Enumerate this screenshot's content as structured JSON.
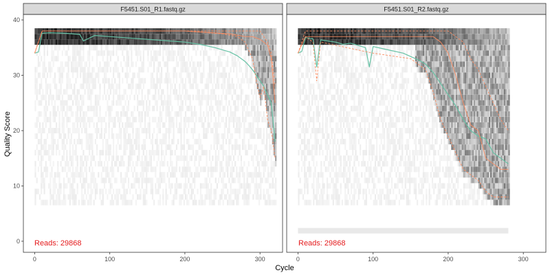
{
  "figure": {
    "xlabel": "Cycle",
    "ylabel": "Quality Score",
    "x_ticks": [
      0,
      100,
      200,
      300
    ],
    "y_ticks": [
      0,
      10,
      20,
      30,
      40
    ],
    "xlim": [
      -15,
      330
    ],
    "ylim": [
      -2,
      41
    ],
    "colors": {
      "mean_line": "#66c2a5",
      "quantile_lines": "#fc8d62",
      "reads_text": "#e41a1c",
      "strip_fill": "#d9d9d9",
      "panel_border": "#333333",
      "heatmap_base": "#ececec"
    }
  },
  "chart_data": [
    {
      "type": "line",
      "panel_title": "F5451.S01_R1.fastq.gz",
      "reads_label": "Reads:  29868",
      "cycles": 320,
      "series": [
        {
          "role": "mean",
          "x": [
            0,
            5,
            10,
            20,
            40,
            60,
            65,
            80,
            100,
            120,
            140,
            160,
            180,
            200,
            220,
            240,
            260,
            270,
            280,
            285,
            290,
            295,
            300,
            305,
            310,
            315,
            320
          ],
          "y": [
            34,
            34.2,
            37.6,
            37.7,
            37.6,
            37.4,
            36.2,
            37.2,
            37.0,
            36.8,
            36.6,
            36.4,
            36.2,
            36.0,
            35.6,
            35.0,
            34.2,
            33.5,
            32.5,
            31.8,
            31.0,
            30.0,
            29.0,
            28.0,
            26.5,
            25.0,
            18.0
          ]
        },
        {
          "role": "median",
          "x": [
            0,
            10,
            100,
            200,
            260,
            280,
            290,
            300,
            310,
            315,
            320
          ],
          "y": [
            34,
            38,
            38,
            38,
            37.5,
            37,
            37,
            36.5,
            35.5,
            33,
            25
          ]
        },
        {
          "role": "q25",
          "x": [
            0,
            10,
            100,
            200,
            250,
            270,
            280,
            290,
            295,
            300,
            305,
            310,
            315,
            320
          ],
          "y": [
            34,
            38,
            38,
            38,
            37.5,
            37,
            36,
            33,
            29,
            26,
            28,
            22,
            20,
            15
          ]
        },
        {
          "role": "q75",
          "x": [
            0,
            10,
            100,
            200,
            260,
            280,
            290,
            300,
            305,
            310,
            315,
            320
          ],
          "y": [
            34,
            38,
            38,
            38,
            38,
            38,
            38,
            38,
            37,
            36,
            34,
            28
          ]
        }
      ]
    },
    {
      "type": "line",
      "panel_title": "F5451.S01_R2.fastq.gz",
      "reads_label": "Reads:  29868",
      "cycles": 280,
      "series": [
        {
          "role": "mean",
          "x": [
            0,
            5,
            10,
            20,
            25,
            30,
            50,
            60,
            70,
            90,
            95,
            100,
            120,
            140,
            150,
            160,
            170,
            180,
            190,
            200,
            210,
            220,
            230,
            240,
            250,
            260,
            270,
            280
          ],
          "y": [
            34,
            34.3,
            36.8,
            36.6,
            31.5,
            36.4,
            36.0,
            35.6,
            35.8,
            35.0,
            31.5,
            35.2,
            34.6,
            34.0,
            33.4,
            32.8,
            32.0,
            30.5,
            28.5,
            26.5,
            24.5,
            22.0,
            20.0,
            19.0,
            18.5,
            16.0,
            15.0,
            14.0
          ]
        },
        {
          "role": "median",
          "x": [
            0,
            10,
            100,
            150,
            180,
            190,
            200,
            210,
            220,
            230,
            240,
            250,
            260,
            270,
            280
          ],
          "y": [
            34,
            37,
            37,
            37,
            37,
            36,
            34,
            30,
            25,
            21,
            20,
            15,
            14,
            13,
            13
          ]
        },
        {
          "role": "q25",
          "x": [
            0,
            10,
            20,
            25,
            30,
            100,
            150,
            170,
            180,
            190,
            200,
            210,
            220,
            230,
            240,
            250,
            260,
            270,
            280
          ],
          "y": [
            34,
            37,
            36,
            29,
            36,
            34,
            33,
            31,
            27,
            22,
            19,
            16,
            13,
            12,
            11,
            9,
            8,
            8,
            8
          ]
        },
        {
          "role": "q75",
          "x": [
            0,
            10,
            100,
            180,
            190,
            200,
            210,
            220,
            230,
            240,
            250,
            260,
            270,
            280
          ],
          "y": [
            34,
            38,
            38,
            38,
            38,
            38,
            37,
            36,
            33,
            31,
            28,
            25,
            22,
            20
          ]
        }
      ]
    }
  ]
}
